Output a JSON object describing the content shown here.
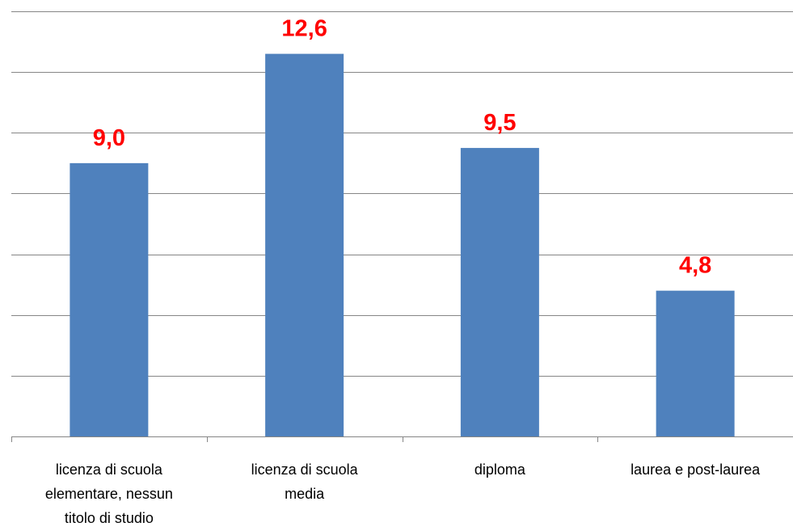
{
  "chart_data": {
    "type": "bar",
    "categories": [
      "licenza di scuola elementare, nessun titolo di studio",
      "licenza di scuola media",
      "diploma",
      "laurea e post-laurea"
    ],
    "values": [
      9.0,
      12.6,
      9.5,
      4.8
    ],
    "value_labels": [
      "9,0",
      "12,6",
      "9,5",
      "4,8"
    ],
    "color": "#4f81bd",
    "value_label_color": "#ff0000",
    "ylim": [
      0,
      14
    ],
    "yticks": [
      0,
      2,
      4,
      6,
      8,
      10,
      12,
      14
    ],
    "grid": true
  }
}
